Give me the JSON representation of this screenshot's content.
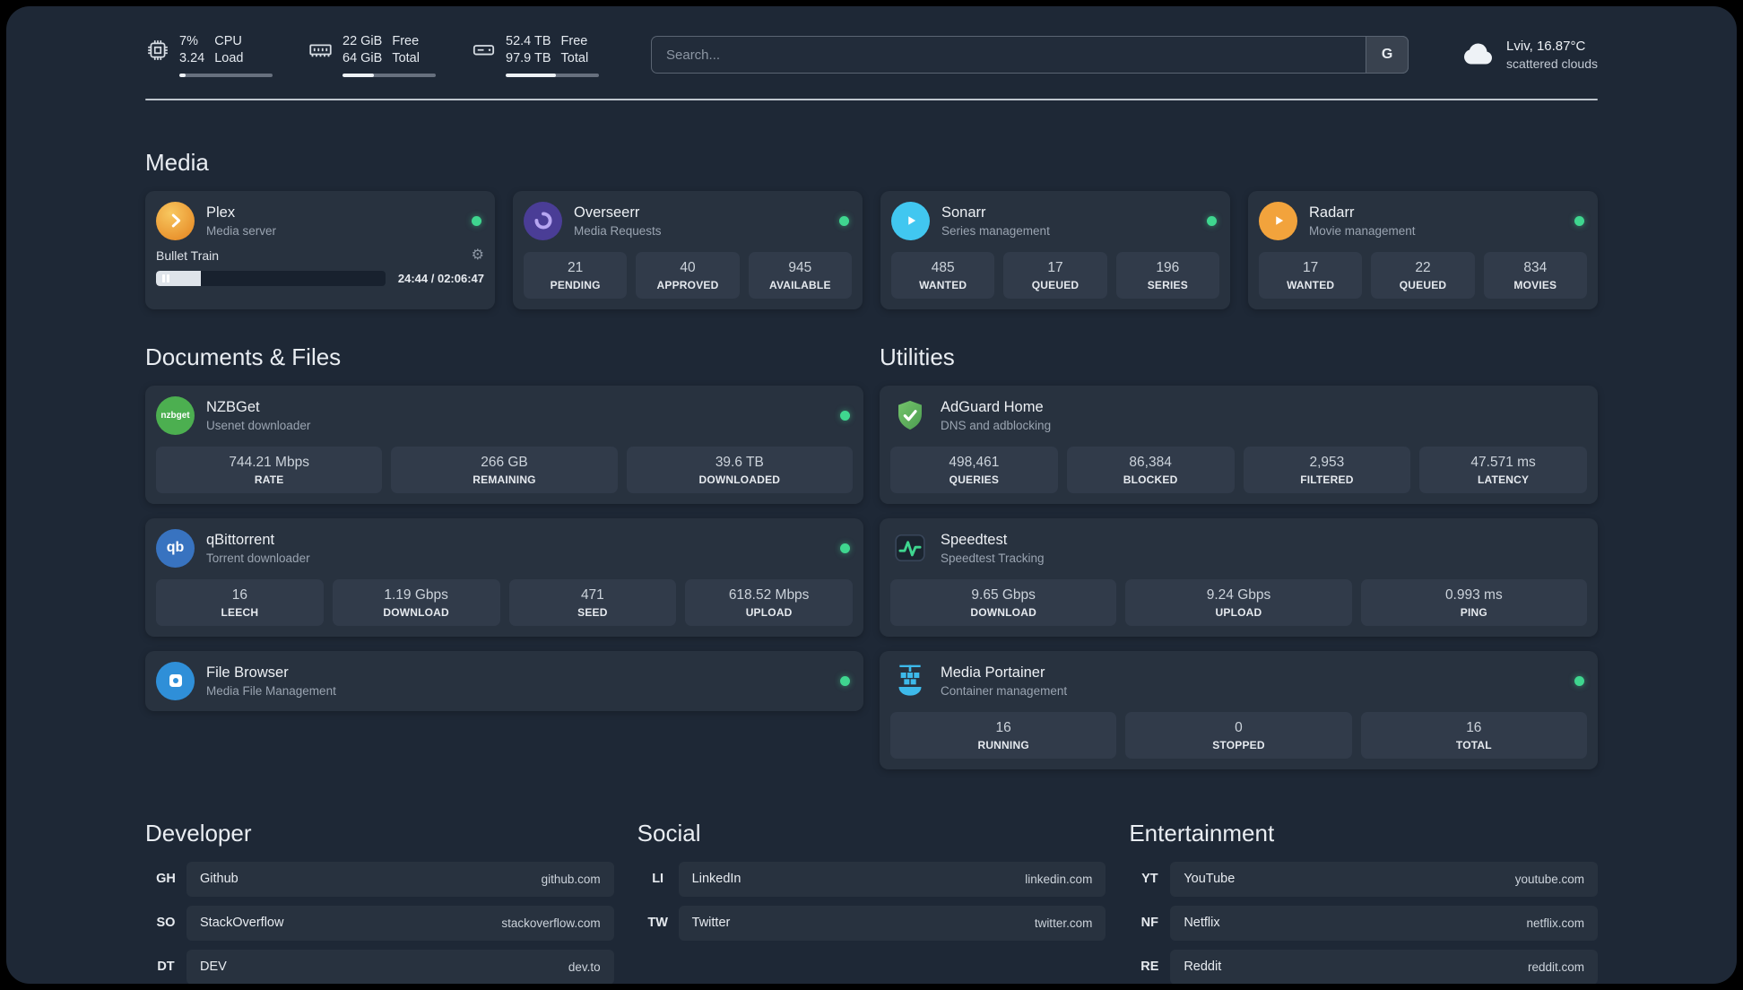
{
  "colors": {
    "background": "#1e2836",
    "card": "#28323f",
    "stat_box": "#313b4a",
    "status_green": "#3fd68f",
    "plex_amber": "#e9932e",
    "overseerr_purple": "#4a3d96",
    "sonarr_blue": "#41c7f0",
    "radarr_amber": "#f2a33c",
    "nzbget_green": "#4caf50",
    "qbittorrent_blue": "#3873c0",
    "filebrowser_blue": "#2f8fd8",
    "adguard_green": "#5fae5b",
    "portainer_blue": "#3db9ea"
  },
  "header": {
    "cpu": {
      "value_top": "7%",
      "value_bottom": "3.24",
      "label_top": "CPU",
      "label_bottom": "Load",
      "bar_percent": 7
    },
    "memory": {
      "value_top": "22 GiB",
      "value_bottom": "64 GiB",
      "label_top": "Free",
      "label_bottom": "Total",
      "bar_percent": 34
    },
    "disk": {
      "value_top": "52.4 TB",
      "value_bottom": "97.9 TB",
      "label_top": "Free",
      "label_bottom": "Total",
      "bar_percent": 54
    },
    "search": {
      "placeholder": "Search...",
      "button_label": "G"
    },
    "weather": {
      "location": "Lviv, 16.87°C",
      "condition": "scattered clouds"
    }
  },
  "sections": {
    "media": {
      "title": "Media",
      "apps": [
        {
          "name": "Plex",
          "desc": "Media server",
          "player": {
            "track": "Bullet Train",
            "time": "24:44 / 02:06:47",
            "progress_percent": 19.5
          }
        },
        {
          "name": "Overseerr",
          "desc": "Media Requests",
          "stats": [
            {
              "value": "21",
              "label": "PENDING"
            },
            {
              "value": "40",
              "label": "APPROVED"
            },
            {
              "value": "945",
              "label": "AVAILABLE"
            }
          ]
        },
        {
          "name": "Sonarr",
          "desc": "Series management",
          "stats": [
            {
              "value": "485",
              "label": "WANTED"
            },
            {
              "value": "17",
              "label": "QUEUED"
            },
            {
              "value": "196",
              "label": "SERIES"
            }
          ]
        },
        {
          "name": "Radarr",
          "desc": "Movie management",
          "stats": [
            {
              "value": "17",
              "label": "WANTED"
            },
            {
              "value": "22",
              "label": "QUEUED"
            },
            {
              "value": "834",
              "label": "MOVIES"
            }
          ]
        }
      ]
    },
    "documents": {
      "title": "Documents & Files",
      "apps": [
        {
          "name": "NZBGet",
          "desc": "Usenet downloader",
          "icon_text": "nzbget",
          "stats": [
            {
              "value": "744.21 Mbps",
              "label": "RATE"
            },
            {
              "value": "266 GB",
              "label": "REMAINING"
            },
            {
              "value": "39.6 TB",
              "label": "DOWNLOADED"
            }
          ]
        },
        {
          "name": "qBittorrent",
          "desc": "Torrent downloader",
          "icon_text": "qb",
          "stats": [
            {
              "value": "16",
              "label": "LEECH"
            },
            {
              "value": "1.19 Gbps",
              "label": "DOWNLOAD"
            },
            {
              "value": "471",
              "label": "SEED"
            },
            {
              "value": "618.52 Mbps",
              "label": "UPLOAD"
            }
          ]
        },
        {
          "name": "File Browser",
          "desc": "Media File Management"
        }
      ]
    },
    "utilities": {
      "title": "Utilities",
      "apps": [
        {
          "name": "AdGuard Home",
          "desc": "DNS and adblocking",
          "stats": [
            {
              "value": "498,461",
              "label": "QUERIES"
            },
            {
              "value": "86,384",
              "label": "BLOCKED"
            },
            {
              "value": "2,953",
              "label": "FILTERED"
            },
            {
              "value": "47.571 ms",
              "label": "LATENCY"
            }
          ]
        },
        {
          "name": "Speedtest",
          "desc": "Speedtest Tracking",
          "stats": [
            {
              "value": "9.65 Gbps",
              "label": "DOWNLOAD"
            },
            {
              "value": "9.24 Gbps",
              "label": "UPLOAD"
            },
            {
              "value": "0.993 ms",
              "label": "PING"
            }
          ]
        },
        {
          "name": "Media Portainer",
          "desc": "Container management",
          "stats": [
            {
              "value": "16",
              "label": "RUNNING"
            },
            {
              "value": "0",
              "label": "STOPPED"
            },
            {
              "value": "16",
              "label": "TOTAL"
            }
          ]
        }
      ]
    },
    "bookmarks": [
      {
        "title": "Developer",
        "links": [
          {
            "abbr": "GH",
            "name": "Github",
            "domain": "github.com"
          },
          {
            "abbr": "SO",
            "name": "StackOverflow",
            "domain": "stackoverflow.com"
          },
          {
            "abbr": "DT",
            "name": "DEV",
            "domain": "dev.to"
          }
        ]
      },
      {
        "title": "Social",
        "links": [
          {
            "abbr": "LI",
            "name": "LinkedIn",
            "domain": "linkedin.com"
          },
          {
            "abbr": "TW",
            "name": "Twitter",
            "domain": "twitter.com"
          }
        ]
      },
      {
        "title": "Entertainment",
        "links": [
          {
            "abbr": "YT",
            "name": "YouTube",
            "domain": "youtube.com"
          },
          {
            "abbr": "NF",
            "name": "Netflix",
            "domain": "netflix.com"
          },
          {
            "abbr": "RE",
            "name": "Reddit",
            "domain": "reddit.com"
          }
        ]
      }
    ]
  }
}
